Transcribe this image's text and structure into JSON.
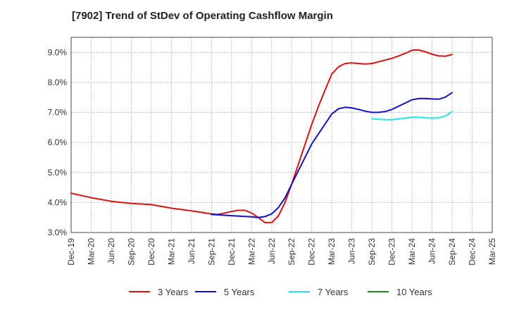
{
  "chart_data": {
    "type": "line",
    "title": "[7902]  Trend of StDev of Operating Cashflow Margin",
    "xlabel": "",
    "ylabel": "",
    "ylim": [
      3.0,
      9.5
    ],
    "yticks": [
      3.0,
      4.0,
      5.0,
      6.0,
      7.0,
      8.0,
      9.0
    ],
    "ytick_labels": [
      "3.0%",
      "4.0%",
      "5.0%",
      "6.0%",
      "7.0%",
      "8.0%",
      "9.0%"
    ],
    "xlim": [
      "Dec-19",
      "Mar-25"
    ],
    "xtick_labels": [
      "Dec-19",
      "Mar-20",
      "Jun-20",
      "Sep-20",
      "Dec-20",
      "Mar-21",
      "Jun-21",
      "Sep-21",
      "Dec-21",
      "Mar-22",
      "Jun-22",
      "Sep-22",
      "Dec-22",
      "Mar-23",
      "Jun-23",
      "Sep-23",
      "Dec-23",
      "Mar-24",
      "Jun-24",
      "Sep-24",
      "Dec-24",
      "Mar-25"
    ],
    "grid": true,
    "legend_position": "bottom",
    "series": [
      {
        "name": "3 Years",
        "color": "#dd1111",
        "x": [
          "Dec-19",
          "Mar-20",
          "Jun-20",
          "Sep-20",
          "Dec-20",
          "Mar-21",
          "Jun-21",
          "Sep-21",
          "Oct-21",
          "Nov-21",
          "Dec-21",
          "Jan-22",
          "Feb-22",
          "Mar-22",
          "Apr-22",
          "May-22",
          "Jun-22",
          "Jul-22",
          "Aug-22",
          "Sep-22",
          "Dec-22",
          "Jan-23",
          "Feb-23",
          "Mar-23",
          "Apr-23",
          "May-23",
          "Jun-23",
          "Jul-23",
          "Aug-23",
          "Sep-23",
          "Dec-23",
          "Jan-24",
          "Feb-24",
          "Mar-24",
          "Apr-24",
          "May-24",
          "Jun-24",
          "Jul-24",
          "Aug-24",
          "Sep-24"
        ],
        "values": [
          4.31,
          4.16,
          4.04,
          3.97,
          3.93,
          3.81,
          3.72,
          3.62,
          3.6,
          3.65,
          3.7,
          3.74,
          3.74,
          3.65,
          3.5,
          3.33,
          3.33,
          3.55,
          4.0,
          4.61,
          6.6,
          7.2,
          7.75,
          8.28,
          8.52,
          8.63,
          8.65,
          8.63,
          8.61,
          8.63,
          8.8,
          8.88,
          8.97,
          9.07,
          9.08,
          9.02,
          8.94,
          8.88,
          8.87,
          8.93
        ]
      },
      {
        "name": "5 Years",
        "color": "#1111cc",
        "x": [
          "Sep-21",
          "Dec-21",
          "Mar-22",
          "Apr-22",
          "May-22",
          "Jun-22",
          "Jul-22",
          "Aug-22",
          "Sep-22",
          "Dec-22",
          "Mar-23",
          "Apr-23",
          "May-23",
          "Jun-23",
          "Jul-23",
          "Aug-23",
          "Sep-23",
          "Oct-23",
          "Nov-23",
          "Dec-23",
          "Mar-24",
          "Apr-24",
          "May-24",
          "Jun-24",
          "Jul-24",
          "Aug-24",
          "Sep-24"
        ],
        "values": [
          3.6,
          3.56,
          3.52,
          3.5,
          3.53,
          3.62,
          3.83,
          4.15,
          4.61,
          5.95,
          6.95,
          7.12,
          7.17,
          7.15,
          7.1,
          7.04,
          7.0,
          7.0,
          7.03,
          7.1,
          7.42,
          7.46,
          7.46,
          7.45,
          7.44,
          7.51,
          7.66
        ]
      },
      {
        "name": "7 Years",
        "color": "#22e5e5",
        "x": [
          "Sep-23",
          "Oct-23",
          "Nov-23",
          "Dec-23",
          "Jan-24",
          "Feb-24",
          "Mar-24",
          "Apr-24",
          "May-24",
          "Jun-24",
          "Jul-24",
          "Aug-24",
          "Sep-24"
        ],
        "values": [
          6.79,
          6.77,
          6.76,
          6.76,
          6.78,
          6.81,
          6.84,
          6.84,
          6.82,
          6.81,
          6.82,
          6.88,
          7.03
        ]
      },
      {
        "name": "10 Years",
        "color": "#1a8a1a",
        "x": [],
        "values": []
      }
    ]
  }
}
